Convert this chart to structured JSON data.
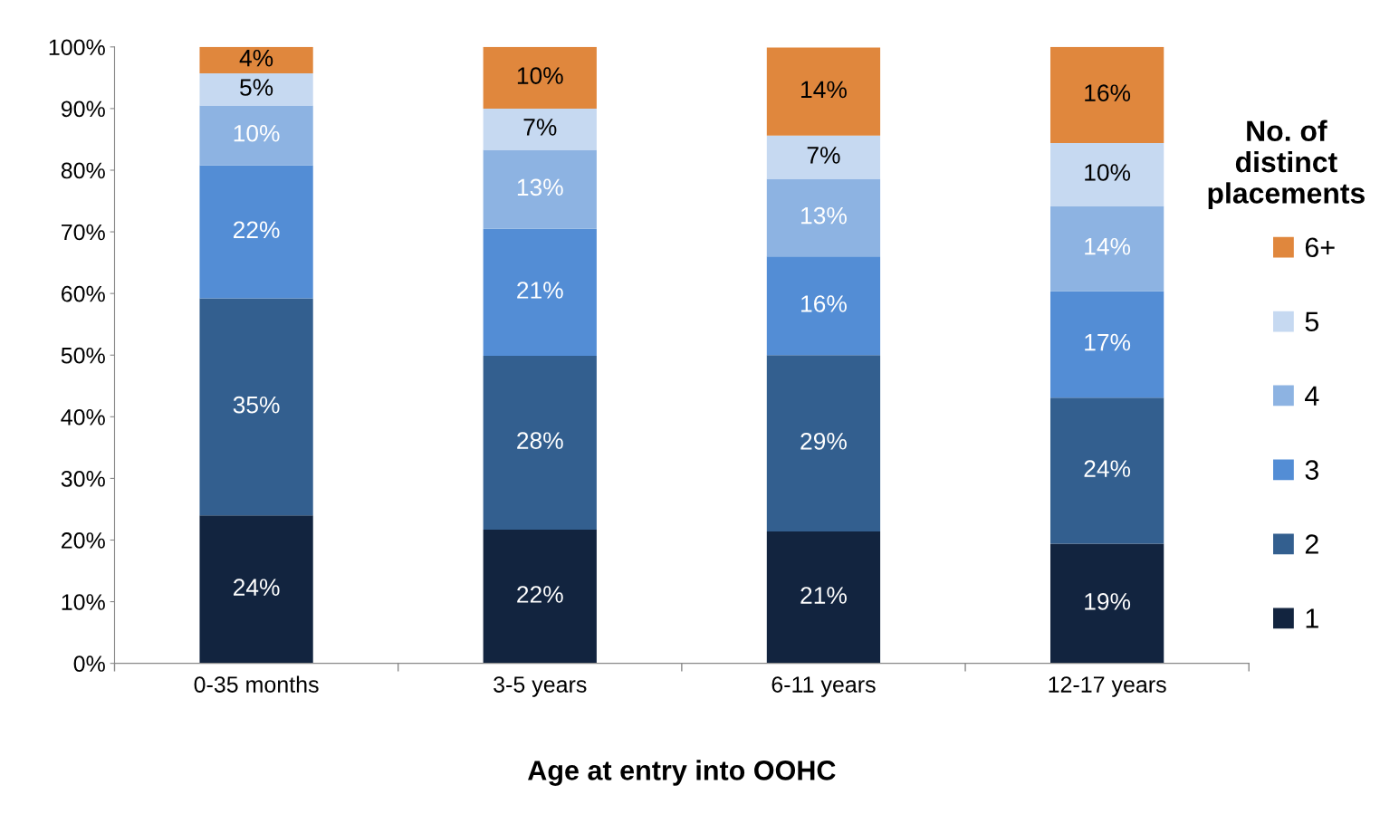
{
  "chart_data": {
    "type": "bar",
    "stacked": true,
    "xlabel": "Age at entry into OOHC",
    "legend_title": "No. of distinct placements",
    "legend": "right",
    "grid": false,
    "categories": [
      "0-35 months",
      "3-5 years",
      "6-11 years",
      "12-17 years"
    ],
    "ylim": [
      0,
      100
    ],
    "yticks": [
      {
        "value": 0,
        "label": "0%"
      },
      {
        "value": 10,
        "label": "10%"
      },
      {
        "value": 20,
        "label": "20%"
      },
      {
        "value": 30,
        "label": "30%"
      },
      {
        "value": 40,
        "label": "40%"
      },
      {
        "value": 50,
        "label": "50%"
      },
      {
        "value": 60,
        "label": "60%"
      },
      {
        "value": 70,
        "label": "70%"
      },
      {
        "value": 80,
        "label": "80%"
      },
      {
        "value": 90,
        "label": "90%"
      },
      {
        "value": 100,
        "label": "100%"
      }
    ],
    "series": [
      {
        "name": "1",
        "color": "#12243f",
        "values": [
          24,
          21.7,
          21.4,
          19.4
        ],
        "value_labels": [
          "24%",
          "22%",
          "21%",
          "19%"
        ]
      },
      {
        "name": "2",
        "color": "#335f8f",
        "values": [
          35.2,
          28.2,
          28.6,
          23.7
        ],
        "value_labels": [
          "35%",
          "28%",
          "29%",
          "24%"
        ]
      },
      {
        "name": "3",
        "color": "#538dd5",
        "values": [
          21.6,
          20.6,
          16,
          17.3
        ],
        "value_labels": [
          "22%",
          "21%",
          "16%",
          "17%"
        ]
      },
      {
        "name": "4",
        "color": "#8db3e2",
        "values": [
          9.7,
          12.8,
          12.6,
          13.8
        ],
        "value_labels": [
          "10%",
          "13%",
          "13%",
          "14%"
        ]
      },
      {
        "name": "5",
        "color": "#c6d9f1",
        "values": [
          5.2,
          6.7,
          7,
          10.2
        ],
        "value_labels": [
          "5%",
          "7%",
          "7%",
          "10%"
        ]
      },
      {
        "name": "6+",
        "color": "#e0873d",
        "values": [
          4.3,
          10,
          14.3,
          15.6
        ],
        "value_labels": [
          "4%",
          "10%",
          "14%",
          "16%"
        ]
      }
    ]
  }
}
